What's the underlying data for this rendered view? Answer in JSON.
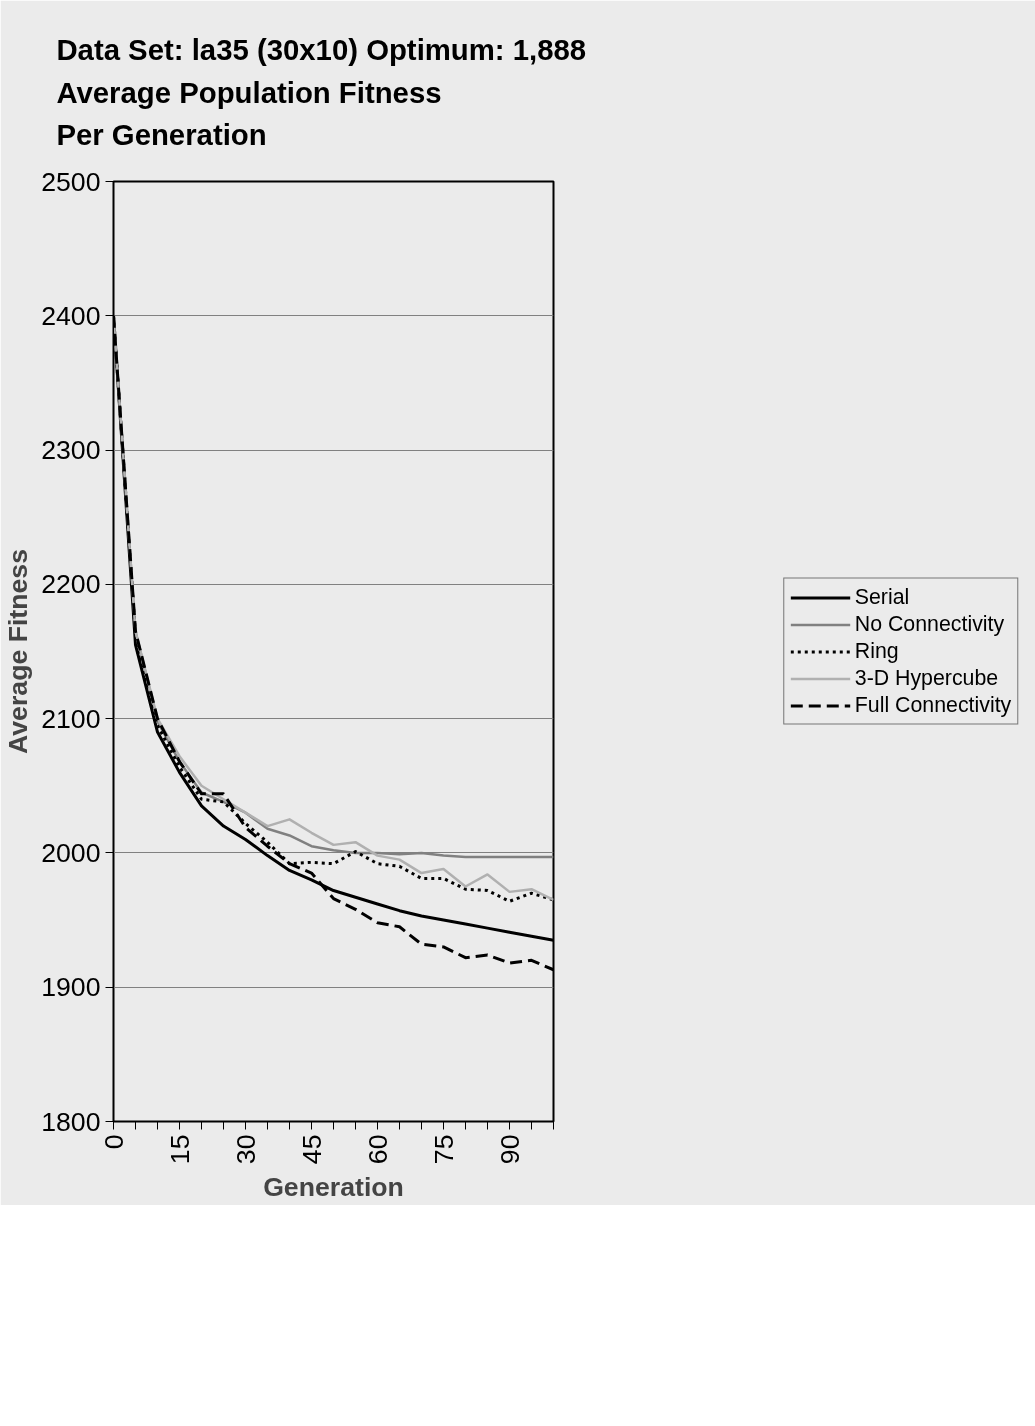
{
  "chart_data": {
    "type": "line",
    "title": "Data Set:  la35 (30x10)  Optimum:  1,888\nAverage Population Fitness\nPer Generation",
    "xlabel": "Generation",
    "ylabel": "Average Fitness",
    "x": [
      0,
      5,
      10,
      15,
      20,
      25,
      30,
      35,
      40,
      45,
      50,
      55,
      60,
      65,
      70,
      75,
      80,
      85,
      90,
      95,
      100
    ],
    "series": [
      {
        "name": "Serial",
        "color": "#000000",
        "line_style": "solid",
        "values": [
          2400,
          2155,
          2090,
          2060,
          2035,
          2020,
          2010,
          1998,
          1987,
          1980,
          1972,
          1967,
          1962,
          1957,
          1953,
          1950,
          1947,
          1944,
          1941,
          1938,
          1935
        ]
      },
      {
        "name": "No Connectivity",
        "color": "#808080",
        "line_style": "solid",
        "values": [
          2400,
          2165,
          2098,
          2068,
          2045,
          2038,
          2030,
          2018,
          2013,
          2005,
          2002,
          2000,
          2000,
          1999,
          2000,
          1998,
          1997,
          1997,
          1997,
          1997,
          1997
        ]
      },
      {
        "name": "Ring",
        "color": "#000000",
        "line_style": "dotted",
        "values": [
          2400,
          2162,
          2095,
          2064,
          2040,
          2038,
          2022,
          2008,
          1992,
          1993,
          1992,
          2001,
          1992,
          1990,
          1981,
          1981,
          1973,
          1972,
          1964,
          1970,
          1965
        ]
      },
      {
        "name": "3-D Hypercube",
        "color": "#b0b0b0",
        "line_style": "solid",
        "values": [
          2400,
          2165,
          2100,
          2072,
          2050,
          2040,
          2030,
          2020,
          2025,
          2015,
          2006,
          2008,
          1998,
          1995,
          1985,
          1988,
          1975,
          1984,
          1971,
          1973,
          1965
        ]
      },
      {
        "name": "Full Connectivity",
        "color": "#000000",
        "line_style": "dashed",
        "values": [
          2400,
          2165,
          2100,
          2068,
          2044,
          2044,
          2019,
          2005,
          1992,
          1985,
          1966,
          1958,
          1948,
          1945,
          1932,
          1930,
          1922,
          1924,
          1918,
          1920,
          1913
        ]
      }
    ],
    "xlim": [
      0,
      100
    ],
    "ylim": [
      1800,
      2500
    ],
    "xticks": [
      0,
      {
        "value": 5,
        "label": null
      },
      {
        "value": 10,
        "label": null
      },
      15,
      {
        "value": 20,
        "label": null
      },
      {
        "value": 25,
        "label": null
      },
      30,
      {
        "value": 35,
        "label": null
      },
      {
        "value": 40,
        "label": null
      },
      45,
      {
        "value": 50,
        "label": null
      },
      {
        "value": 55,
        "label": null
      },
      60,
      {
        "value": 65,
        "label": null
      },
      {
        "value": 70,
        "label": null
      },
      75,
      {
        "value": 80,
        "label": null
      },
      {
        "value": 85,
        "label": null
      },
      90,
      {
        "value": 95,
        "label": null
      },
      {
        "value": 100,
        "label": null
      }
    ],
    "yticks": [
      1800,
      1900,
      2000,
      2100,
      2200,
      2300,
      2400,
      2500
    ],
    "grid": "y",
    "legend": "right",
    "marker": "none"
  }
}
